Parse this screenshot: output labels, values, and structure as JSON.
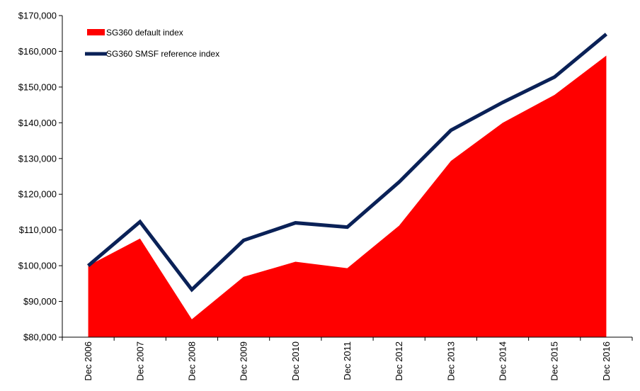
{
  "chart_data": {
    "type": "area",
    "title": "",
    "xlabel": "",
    "ylabel": "",
    "categories": [
      "Dec 2006",
      "Dec 2007",
      "Dec 2008",
      "Dec 2009",
      "Dec 2010",
      "Dec 2011",
      "Dec 2012",
      "Dec 2013",
      "Dec 2014",
      "Dec 2015",
      "Dec 2016"
    ],
    "ylim": [
      80000,
      170000
    ],
    "y_ticks": [
      80000,
      90000,
      100000,
      110000,
      120000,
      130000,
      140000,
      150000,
      160000,
      170000
    ],
    "y_tick_labels": [
      "$80,000",
      "$90,000",
      "$100,000",
      "$110,000",
      "$120,000",
      "$130,000",
      "$140,000",
      "$150,000",
      "$160,000",
      "$170,000"
    ],
    "grid": false,
    "legend_position": "top-left",
    "series": [
      {
        "name": "SG360 default index",
        "style": "area",
        "color": "#FF0000",
        "values": [
          100000,
          107600,
          85000,
          96900,
          101100,
          99300,
          111200,
          129300,
          140000,
          147800,
          158800
        ]
      },
      {
        "name": "SG360 SMSF reference index",
        "style": "line",
        "color": "#0A2157",
        "values": [
          100000,
          112300,
          93300,
          107100,
          112000,
          110800,
          123400,
          137900,
          145700,
          152800,
          164800
        ]
      }
    ]
  }
}
